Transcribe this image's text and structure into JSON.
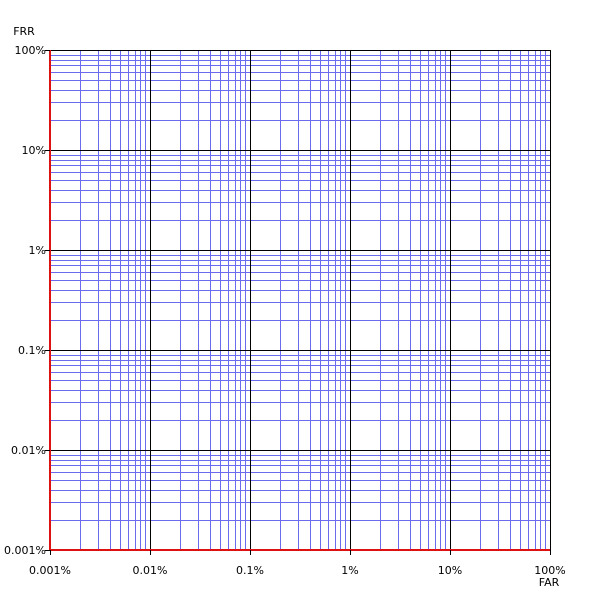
{
  "chart_data": {
    "type": "line",
    "title": "",
    "xlabel": "FAR",
    "ylabel": "FRR",
    "x_scale": "log",
    "y_scale": "log",
    "xlim": [
      1e-05,
      1
    ],
    "ylim": [
      1e-05,
      1
    ],
    "x_ticks": [
      {
        "value": 1e-05,
        "label": "0.001%"
      },
      {
        "value": 0.0001,
        "label": "0.01%"
      },
      {
        "value": 0.001,
        "label": "0.1%"
      },
      {
        "value": 0.01,
        "label": "1%"
      },
      {
        "value": 0.1,
        "label": "10%"
      },
      {
        "value": 1,
        "label": "100%"
      }
    ],
    "y_ticks": [
      {
        "value": 1e-05,
        "label": "0.001%"
      },
      {
        "value": 0.0001,
        "label": "0.01%"
      },
      {
        "value": 0.001,
        "label": "0.1%"
      },
      {
        "value": 0.01,
        "label": "1%"
      },
      {
        "value": 0.1,
        "label": "10%"
      },
      {
        "value": 1,
        "label": "100%"
      }
    ],
    "grid": "on",
    "series": []
  },
  "colors": {
    "major_grid": "#000000",
    "minor_grid": "#6b6bee",
    "axis": "#dd1111"
  }
}
